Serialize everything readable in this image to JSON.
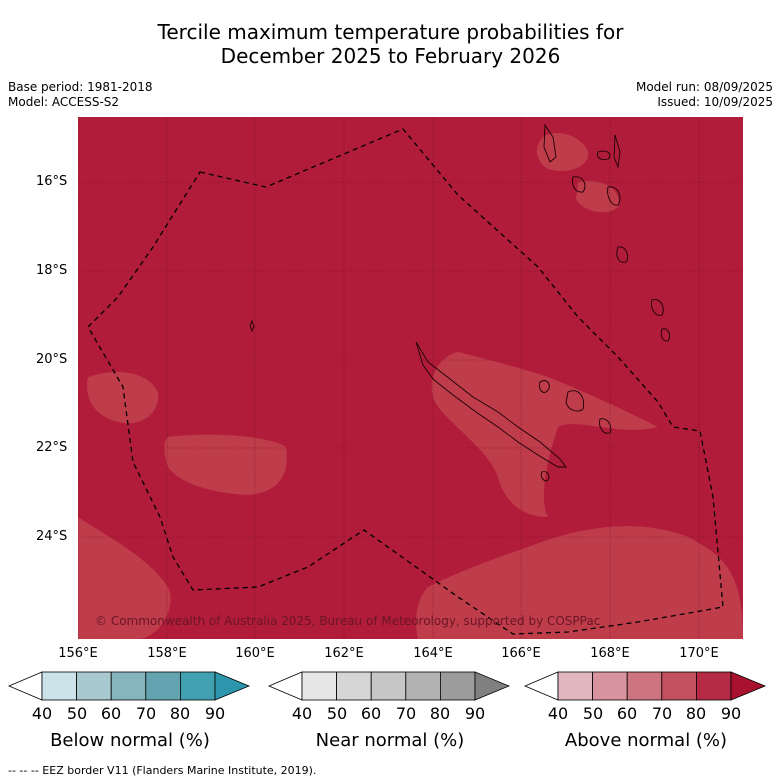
{
  "title_line1": "Tercile maximum temperature probabilities for",
  "title_line2": "December 2025 to February 2026",
  "meta": {
    "base_period": "Base period: 1981-2018",
    "model": "Model: ACCESS-S2",
    "model_run": "Model run: 08/09/2025",
    "issued": "Issued: 10/09/2025"
  },
  "map": {
    "lat_labels": [
      "16°S",
      "18°S",
      "20°S",
      "22°S",
      "24°S"
    ],
    "lon_labels": [
      "156°E",
      "158°E",
      "160°E",
      "162°E",
      "164°E",
      "166°E",
      "168°E",
      "170°E"
    ],
    "copyright": "© Commonwealth of Australia 2025, Bureau of Meteorology, supported by COSPPac",
    "background_color": "#b01c3a"
  },
  "colorbars": [
    {
      "label": "Below normal (%)",
      "ticks": [
        "40",
        "50",
        "60",
        "70",
        "80",
        "90"
      ],
      "colors": [
        "#ffffff",
        "#cbe3e8",
        "#a8c9cf",
        "#87b5bf",
        "#64a4b1",
        "#41a1b1",
        "#2c97ac"
      ]
    },
    {
      "label": "Near normal (%)",
      "ticks": [
        "40",
        "50",
        "60",
        "70",
        "80",
        "90"
      ],
      "colors": [
        "#ffffff",
        "#e6e6e6",
        "#d6d6d6",
        "#c6c6c6",
        "#b3b3b3",
        "#9c9c9c",
        "#808080"
      ]
    },
    {
      "label": "Above normal (%)",
      "ticks": [
        "40",
        "50",
        "60",
        "70",
        "80",
        "90"
      ],
      "colors": [
        "#ffffff",
        "#e2b6bf",
        "#d8939e",
        "#cd7480",
        "#c2505f",
        "#b52b45",
        "#a8122e"
      ]
    }
  ],
  "footnote": "-- -- -- EEZ border V11 (Flanders Marine Institute, 2019)."
}
